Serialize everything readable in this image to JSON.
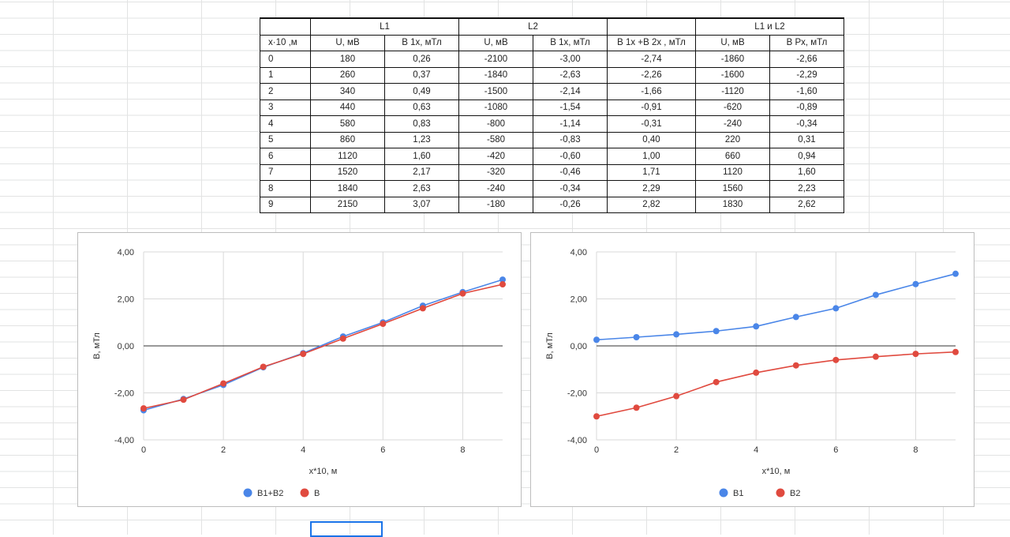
{
  "table": {
    "group_headers": [
      "L1",
      "L2",
      "L1 и L2"
    ],
    "col_headers": [
      "x·10 ,м",
      "U, мВ",
      "B 1x, мТл",
      "U, мВ",
      "B 1x, мТл",
      "B 1x +B 2x , мТл",
      "U, мВ",
      "B Px, мТл"
    ],
    "rows": [
      [
        "0",
        "180",
        "0,26",
        "-2100",
        "-3,00",
        "-2,74",
        "-1860",
        "-2,66"
      ],
      [
        "1",
        "260",
        "0,37",
        "-1840",
        "-2,63",
        "-2,26",
        "-1600",
        "-2,29"
      ],
      [
        "2",
        "340",
        "0,49",
        "-1500",
        "-2,14",
        "-1,66",
        "-1120",
        "-1,60"
      ],
      [
        "3",
        "440",
        "0,63",
        "-1080",
        "-1,54",
        "-0,91",
        "-620",
        "-0,89"
      ],
      [
        "4",
        "580",
        "0,83",
        "-800",
        "-1,14",
        "-0,31",
        "-240",
        "-0,34"
      ],
      [
        "5",
        "860",
        "1,23",
        "-580",
        "-0,83",
        "0,40",
        "220",
        "0,31"
      ],
      [
        "6",
        "1120",
        "1,60",
        "-420",
        "-0,60",
        "1,00",
        "660",
        "0,94"
      ],
      [
        "7",
        "1520",
        "2,17",
        "-320",
        "-0,46",
        "1,71",
        "1120",
        "1,60"
      ],
      [
        "8",
        "1840",
        "2,63",
        "-240",
        "-0,34",
        "2,29",
        "1560",
        "2,23"
      ],
      [
        "9",
        "2150",
        "3,07",
        "-180",
        "-0,26",
        "2,82",
        "1830",
        "2,62"
      ]
    ]
  },
  "chart_data": [
    {
      "type": "line",
      "xlabel": "x*10, м",
      "ylabel": "B, мТл",
      "xlim": [
        0,
        9
      ],
      "ylim": [
        -4,
        4
      ],
      "x_ticks": [
        "0",
        "2",
        "4",
        "6",
        "8"
      ],
      "y_ticks": [
        "-4,00",
        "-2,00",
        "0,00",
        "2,00",
        "4,00"
      ],
      "grid": true,
      "legend_position": "bottom",
      "x": [
        0,
        1,
        2,
        3,
        4,
        5,
        6,
        7,
        8,
        9
      ],
      "series": [
        {
          "name": "B1+B2",
          "color": "#4a86e8",
          "values": [
            -2.74,
            -2.26,
            -1.66,
            -0.91,
            -0.31,
            0.4,
            1.0,
            1.71,
            2.29,
            2.82
          ]
        },
        {
          "name": "B",
          "color": "#e04a3f",
          "values": [
            -2.66,
            -2.29,
            -1.6,
            -0.89,
            -0.34,
            0.31,
            0.94,
            1.6,
            2.23,
            2.62
          ]
        }
      ]
    },
    {
      "type": "line",
      "xlabel": "x*10, м",
      "ylabel": "B, мТл",
      "xlim": [
        0,
        9
      ],
      "ylim": [
        -4,
        4
      ],
      "x_ticks": [
        "0",
        "2",
        "4",
        "6",
        "8"
      ],
      "y_ticks": [
        "-4,00",
        "-2,00",
        "0,00",
        "2,00",
        "4,00"
      ],
      "grid": true,
      "legend_position": "bottom",
      "x": [
        0,
        1,
        2,
        3,
        4,
        5,
        6,
        7,
        8,
        9
      ],
      "series": [
        {
          "name": "B1",
          "color": "#4a86e8",
          "values": [
            0.26,
            0.37,
            0.49,
            0.63,
            0.83,
            1.23,
            1.6,
            2.17,
            2.63,
            3.07
          ]
        },
        {
          "name": "B2",
          "color": "#e04a3f",
          "values": [
            -3.0,
            -2.63,
            -2.14,
            -1.54,
            -1.14,
            -0.83,
            -0.6,
            -0.46,
            -0.34,
            -0.26
          ]
        }
      ]
    }
  ]
}
